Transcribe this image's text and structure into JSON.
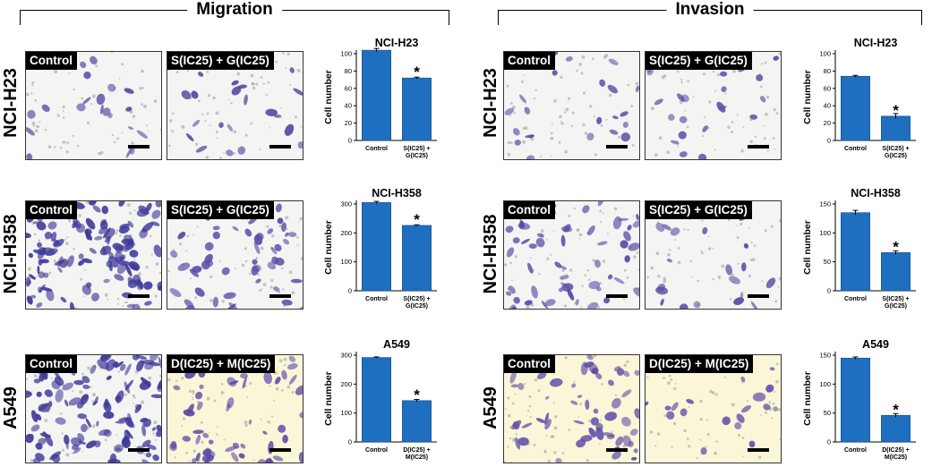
{
  "sections": [
    {
      "title": "Migration"
    },
    {
      "title": "Invasion"
    }
  ],
  "row_labels": [
    "NCI-H23",
    "NCI-H358",
    "A549"
  ],
  "panel_labels": {
    "control": "Control",
    "treat_sg": "S(IC25) + G(IC25)",
    "treat_dm": "D(IC25) + M(IC25)"
  },
  "colors": {
    "bar": "#1e6fc0",
    "sparse_stain": "#5b4aa6",
    "dense_stain": "#3f3a9a",
    "background_light": "#f4f4f2",
    "background_yellow": "#fbf6d8"
  },
  "chart_data": [
    {
      "type": "bar",
      "title": "NCI-H23",
      "ylabel": "Cell number",
      "categories": [
        "Control",
        "S(IC25) +\nG(IC25)"
      ],
      "values": [
        104,
        72
      ],
      "errors": [
        2,
        1
      ],
      "ylim": [
        0,
        100
      ],
      "yticks": [
        0,
        20,
        40,
        60,
        80,
        100
      ],
      "significance": [
        false,
        true
      ]
    },
    {
      "type": "bar",
      "title": "NCI-H358",
      "ylabel": "Cell number",
      "categories": [
        "Control",
        "S(IC25) +\nG(IC25)"
      ],
      "values": [
        305,
        226
      ],
      "errors": [
        4,
        2
      ],
      "ylim": [
        0,
        300
      ],
      "yticks": [
        0,
        100,
        200,
        300
      ],
      "significance": [
        false,
        true
      ]
    },
    {
      "type": "bar",
      "title": "A549",
      "ylabel": "Cell number",
      "categories": [
        "Control",
        "D(IC25) +\nM(IC25)"
      ],
      "values": [
        292,
        143
      ],
      "errors": [
        2,
        4
      ],
      "ylim": [
        0,
        300
      ],
      "yticks": [
        0,
        100,
        200,
        300
      ],
      "significance": [
        false,
        true
      ]
    },
    {
      "type": "bar",
      "title": "NCI-H23",
      "ylabel": "Cell number",
      "categories": [
        "Control",
        "S(IC25) +\nG(IC25)"
      ],
      "values": [
        74,
        28
      ],
      "errors": [
        1,
        3
      ],
      "ylim": [
        0,
        100
      ],
      "yticks": [
        0,
        20,
        40,
        60,
        80,
        100
      ],
      "significance": [
        false,
        true
      ]
    },
    {
      "type": "bar",
      "title": "NCI-H358",
      "ylabel": "Cell number",
      "categories": [
        "Control",
        "S(IC25) +\nG(IC25)"
      ],
      "values": [
        135,
        66
      ],
      "errors": [
        4,
        3
      ],
      "ylim": [
        0,
        150
      ],
      "yticks": [
        0,
        50,
        100,
        150
      ],
      "significance": [
        false,
        true
      ]
    },
    {
      "type": "bar",
      "title": "A549",
      "ylabel": "Cell number",
      "categories": [
        "Control",
        "D(IC25) +\nM(IC25)"
      ],
      "values": [
        145,
        46
      ],
      "errors": [
        2,
        3
      ],
      "ylim": [
        0,
        150
      ],
      "yticks": [
        0,
        50,
        100,
        150
      ],
      "significance": [
        false,
        true
      ]
    }
  ]
}
